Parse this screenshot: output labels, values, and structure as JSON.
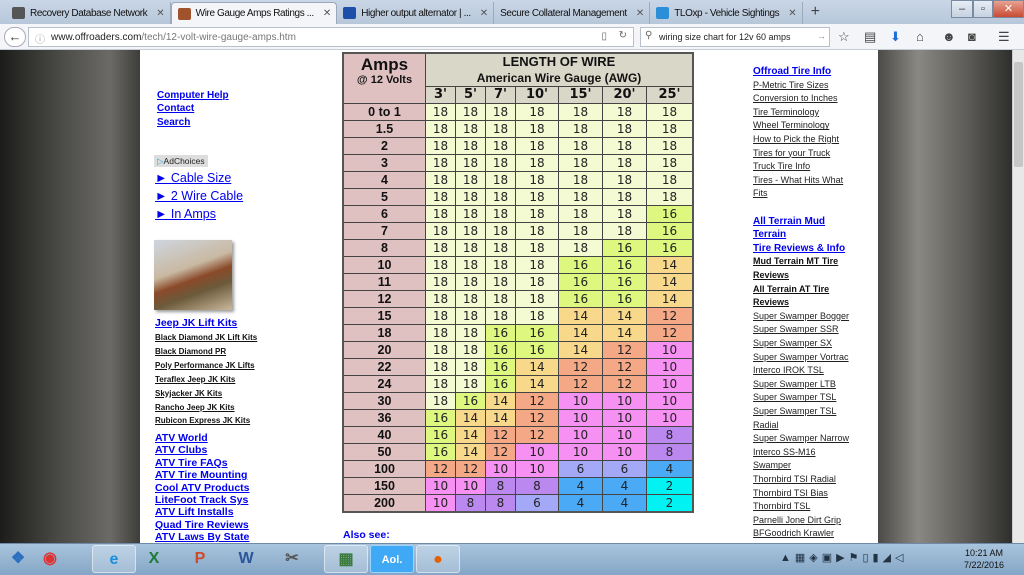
{
  "browser": {
    "tabs": [
      {
        "label": "Recovery Database Network",
        "icon": "car-icon",
        "active": false
      },
      {
        "label": "Wire Gauge Amps Ratings ...",
        "icon": "site-favicon",
        "active": true
      },
      {
        "label": "Higher output alternator | ...",
        "icon": "forum-icon",
        "active": false
      },
      {
        "label": "Secure Collateral Management",
        "icon": "",
        "active": false
      },
      {
        "label": "TLOxp - Vehicle Sightings",
        "icon": "globe-icon",
        "active": false
      }
    ],
    "new_tab": "+",
    "url_host": "www.offroaders.com",
    "url_path": "/tech/12-volt-wire-gauge-amps.htm",
    "search_value": "wiring size chart for 12v 60 amps"
  },
  "left": {
    "top_links": [
      "Computer Help",
      "Contact",
      "Search"
    ],
    "adchoices": "AdChoices",
    "ad_links": [
      "► Cable Size",
      "► 2 Wire Cable",
      "► In Amps"
    ],
    "jeep_heading": "Jeep JK Lift Kits",
    "jeep_links": [
      "Black Diamond JK Lift Kits",
      "Black Diamond PR",
      "Poly Performance JK Lifts",
      "Teraflex Jeep JK Kits",
      "Skyjacker JK Kits",
      "Rancho Jeep JK Kits",
      "Rubicon Express JK Kits"
    ],
    "atv_links": [
      "ATV World",
      "ATV Clubs",
      "ATV Tire FAQs",
      "ATV Tire Mounting",
      "Cool ATV Products",
      "LiteFoot Track Sys",
      "ATV Lift Installs",
      "Quad Tire Reviews",
      "ATV Laws By State"
    ]
  },
  "table": {
    "amps_title": "Amps",
    "amps_sub": "@ 12 Volts",
    "title": "LENGTH OF WIRE",
    "subtitle": "American Wire Gauge (AWG)",
    "lengths": [
      "3'",
      "5'",
      "7'",
      "10'",
      "15'",
      "20'",
      "25'"
    ],
    "rows": [
      {
        "amps": "0 to 1",
        "g": [
          18,
          18,
          18,
          18,
          18,
          18,
          18
        ]
      },
      {
        "amps": "1.5",
        "g": [
          18,
          18,
          18,
          18,
          18,
          18,
          18
        ]
      },
      {
        "amps": "2",
        "g": [
          18,
          18,
          18,
          18,
          18,
          18,
          18
        ]
      },
      {
        "amps": "3",
        "g": [
          18,
          18,
          18,
          18,
          18,
          18,
          18
        ]
      },
      {
        "amps": "4",
        "g": [
          18,
          18,
          18,
          18,
          18,
          18,
          18
        ]
      },
      {
        "amps": "5",
        "g": [
          18,
          18,
          18,
          18,
          18,
          18,
          18
        ]
      },
      {
        "amps": "6",
        "g": [
          18,
          18,
          18,
          18,
          18,
          18,
          16
        ]
      },
      {
        "amps": "7",
        "g": [
          18,
          18,
          18,
          18,
          18,
          18,
          16
        ]
      },
      {
        "amps": "8",
        "g": [
          18,
          18,
          18,
          18,
          18,
          16,
          16
        ]
      },
      {
        "amps": "10",
        "g": [
          18,
          18,
          18,
          18,
          16,
          16,
          14
        ]
      },
      {
        "amps": "11",
        "g": [
          18,
          18,
          18,
          18,
          16,
          16,
          14
        ]
      },
      {
        "amps": "12",
        "g": [
          18,
          18,
          18,
          18,
          16,
          16,
          14
        ]
      },
      {
        "amps": "15",
        "g": [
          18,
          18,
          18,
          18,
          14,
          14,
          12
        ]
      },
      {
        "amps": "18",
        "g": [
          18,
          18,
          16,
          16,
          14,
          14,
          12
        ]
      },
      {
        "amps": "20",
        "g": [
          18,
          18,
          16,
          16,
          14,
          12,
          10
        ]
      },
      {
        "amps": "22",
        "g": [
          18,
          18,
          16,
          14,
          12,
          12,
          10
        ]
      },
      {
        "amps": "24",
        "g": [
          18,
          18,
          16,
          14,
          12,
          12,
          10
        ]
      },
      {
        "amps": "30",
        "g": [
          18,
          16,
          14,
          12,
          10,
          10,
          10
        ]
      },
      {
        "amps": "36",
        "g": [
          16,
          14,
          14,
          12,
          10,
          10,
          10
        ]
      },
      {
        "amps": "40",
        "g": [
          16,
          14,
          12,
          12,
          10,
          10,
          8
        ]
      },
      {
        "amps": "50",
        "g": [
          16,
          14,
          12,
          10,
          10,
          10,
          8
        ]
      },
      {
        "amps": "100",
        "g": [
          12,
          12,
          10,
          10,
          6,
          6,
          4
        ]
      },
      {
        "amps": "150",
        "g": [
          10,
          10,
          8,
          8,
          4,
          4,
          2
        ]
      },
      {
        "amps": "200",
        "g": [
          10,
          8,
          8,
          6,
          4,
          4,
          2
        ]
      }
    ],
    "gauge_colors": {
      "18": "#f4fbd2",
      "16": "#def77e",
      "14": "#f8d98c",
      "12": "#f5a886",
      "10": "#f690f2",
      "8": "#bb88ef",
      "6": "#a3a8f7",
      "4": "#4aaaf5",
      "2": "#00f2f2"
    }
  },
  "also_see": "Also see:",
  "right": {
    "items": [
      {
        "t": "Offroad Tire Info",
        "k": "h"
      },
      {
        "t": "P-Metric Tire Sizes",
        "k": "s"
      },
      {
        "t": "Conversion to Inches",
        "k": "s"
      },
      {
        "t": "Tire Terminology",
        "k": "s"
      },
      {
        "t": "Wheel Terminology",
        "k": "s"
      },
      {
        "t": "How to Pick the Right",
        "k": "s"
      },
      {
        "t": "Tires for your Truck",
        "k": "s"
      },
      {
        "t": "Truck Tire Info",
        "k": "s"
      },
      {
        "t": "Tires - What Hits What",
        "k": "s"
      },
      {
        "t": "Fits",
        "k": "s"
      },
      {
        "t": "",
        "k": "gap"
      },
      {
        "t": "All Terrain  Mud",
        "k": "h"
      },
      {
        "t": "Terrain",
        "k": "h"
      },
      {
        "t": "Tire Reviews & Info",
        "k": "h"
      },
      {
        "t": "Mud Terrain MT Tire",
        "k": "b"
      },
      {
        "t": "Reviews",
        "k": "b"
      },
      {
        "t": "All Terrain AT Tire",
        "k": "b"
      },
      {
        "t": "Reviews",
        "k": "b"
      },
      {
        "t": "Super Swamper Bogger",
        "k": "s"
      },
      {
        "t": "Super Swamper SSR",
        "k": "s"
      },
      {
        "t": "Super Swamper SX",
        "k": "s"
      },
      {
        "t": "Super Swamper Vortrac",
        "k": "s"
      },
      {
        "t": "Interco IROK TSL",
        "k": "s"
      },
      {
        "t": "Super Swamper LTB",
        "k": "s"
      },
      {
        "t": "Super Swamper TSL",
        "k": "s"
      },
      {
        "t": "Super Swamper TSL",
        "k": "s"
      },
      {
        "t": "Radial",
        "k": "s"
      },
      {
        "t": "Super Swamper Narrow",
        "k": "s"
      },
      {
        "t": "Interco SS-M16",
        "k": "s"
      },
      {
        "t": "Swamper",
        "k": "s"
      },
      {
        "t": "Thornbird TSI Radial",
        "k": "s"
      },
      {
        "t": "Thornbird TSI Bias",
        "k": "s"
      },
      {
        "t": "Thornbird TSL",
        "k": "s"
      },
      {
        "t": "Parnelli Jone Dirt Grip",
        "k": "s"
      },
      {
        "t": "BFGoodrich Krawler",
        "k": "s"
      }
    ]
  },
  "taskbar": {
    "apps": [
      {
        "name": "start-button",
        "glyph": "❖",
        "color": "#2a6fc0"
      },
      {
        "name": "chrome",
        "glyph": "◉",
        "color": "#d33"
      },
      {
        "name": "internet-explorer",
        "glyph": "e",
        "color": "#1a8fe0"
      },
      {
        "name": "excel",
        "glyph": "X",
        "color": "#1d7a3a"
      },
      {
        "name": "powerpoint",
        "glyph": "P",
        "color": "#d24726"
      },
      {
        "name": "word",
        "glyph": "W",
        "color": "#2b579a"
      },
      {
        "name": "snipping-tool",
        "glyph": "✂",
        "color": "#555"
      },
      {
        "name": "maps-app",
        "glyph": "▦",
        "color": "#3a7a3a"
      },
      {
        "name": "aol",
        "glyph": "Aol.",
        "color": "#fff"
      },
      {
        "name": "firefox",
        "glyph": "●",
        "color": "#e66000"
      }
    ],
    "time": "10:21 AM",
    "date": "7/22/2016"
  }
}
